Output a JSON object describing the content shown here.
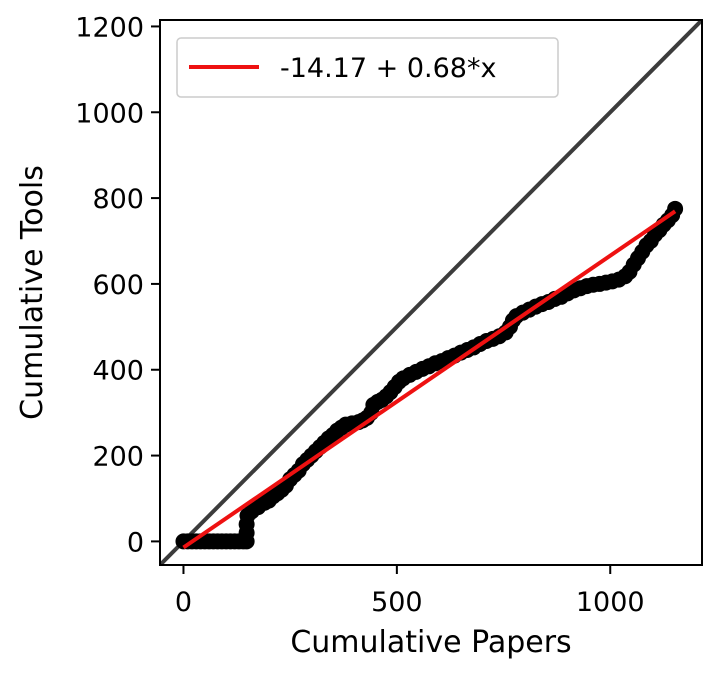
{
  "chart_data": {
    "type": "scatter",
    "xlabel": "Cumulative Papers",
    "ylabel": "Cumulative Tools",
    "xlim": [
      -55,
      1215
    ],
    "ylim": [
      -55,
      1215
    ],
    "xticks": [
      0,
      500,
      1000
    ],
    "yticks": [
      0,
      200,
      400,
      600,
      800,
      1000,
      1200
    ],
    "xtick_labels": [
      "0",
      "500",
      "1000"
    ],
    "ytick_labels": [
      "0",
      "200",
      "400",
      "600",
      "800",
      "1000",
      "1200"
    ],
    "grid": false,
    "legend_position": "top-left",
    "series": [
      {
        "kind": "scatter",
        "color": "#000000",
        "points": [
          [
            0,
            0
          ],
          [
            10,
            0
          ],
          [
            20,
            0
          ],
          [
            30,
            0
          ],
          [
            40,
            0
          ],
          [
            50,
            0
          ],
          [
            60,
            0
          ],
          [
            70,
            0
          ],
          [
            80,
            0
          ],
          [
            90,
            0
          ],
          [
            100,
            0
          ],
          [
            110,
            0
          ],
          [
            120,
            0
          ],
          [
            130,
            0
          ],
          [
            140,
            0
          ],
          [
            148,
            0
          ],
          [
            148,
            20
          ],
          [
            148,
            40
          ],
          [
            150,
            60
          ],
          [
            160,
            70
          ],
          [
            175,
            80
          ],
          [
            190,
            90
          ],
          [
            200,
            95
          ],
          [
            210,
            105
          ],
          [
            220,
            112
          ],
          [
            230,
            120
          ],
          [
            240,
            130
          ],
          [
            250,
            145
          ],
          [
            260,
            155
          ],
          [
            270,
            165
          ],
          [
            280,
            180
          ],
          [
            290,
            190
          ],
          [
            300,
            200
          ],
          [
            310,
            210
          ],
          [
            320,
            220
          ],
          [
            330,
            230
          ],
          [
            340,
            240
          ],
          [
            350,
            248
          ],
          [
            360,
            258
          ],
          [
            370,
            265
          ],
          [
            380,
            272
          ],
          [
            395,
            275
          ],
          [
            410,
            278
          ],
          [
            420,
            282
          ],
          [
            430,
            288
          ],
          [
            440,
            300
          ],
          [
            445,
            318
          ],
          [
            455,
            325
          ],
          [
            465,
            330
          ],
          [
            475,
            338
          ],
          [
            485,
            348
          ],
          [
            495,
            360
          ],
          [
            505,
            372
          ],
          [
            515,
            380
          ],
          [
            530,
            388
          ],
          [
            545,
            395
          ],
          [
            560,
            402
          ],
          [
            575,
            408
          ],
          [
            590,
            415
          ],
          [
            605,
            420
          ],
          [
            620,
            427
          ],
          [
            635,
            433
          ],
          [
            650,
            440
          ],
          [
            665,
            446
          ],
          [
            680,
            452
          ],
          [
            695,
            460
          ],
          [
            710,
            467
          ],
          [
            725,
            472
          ],
          [
            740,
            478
          ],
          [
            755,
            487
          ],
          [
            765,
            500
          ],
          [
            772,
            515
          ],
          [
            780,
            525
          ],
          [
            795,
            533
          ],
          [
            810,
            540
          ],
          [
            825,
            547
          ],
          [
            840,
            553
          ],
          [
            855,
            558
          ],
          [
            870,
            565
          ],
          [
            885,
            570
          ],
          [
            900,
            578
          ],
          [
            915,
            585
          ],
          [
            930,
            590
          ],
          [
            945,
            595
          ],
          [
            960,
            598
          ],
          [
            975,
            600
          ],
          [
            990,
            603
          ],
          [
            1005,
            606
          ],
          [
            1020,
            610
          ],
          [
            1035,
            618
          ],
          [
            1045,
            628
          ],
          [
            1055,
            645
          ],
          [
            1065,
            660
          ],
          [
            1075,
            675
          ],
          [
            1085,
            690
          ],
          [
            1095,
            700
          ],
          [
            1105,
            715
          ],
          [
            1115,
            725
          ],
          [
            1125,
            738
          ],
          [
            1135,
            748
          ],
          [
            1145,
            760
          ],
          [
            1152,
            775
          ]
        ]
      },
      {
        "kind": "fit",
        "name": "-14.17 + 0.68*x",
        "color": "#ee1111",
        "intercept": -14.17,
        "slope": 0.68,
        "x_range": [
          0,
          1152
        ]
      },
      {
        "kind": "reference",
        "color": "#3c3c3c",
        "points": [
          [
            -55,
            -55
          ],
          [
            1215,
            1215
          ]
        ]
      }
    ],
    "legend": [
      "-14.17 + 0.68*x"
    ]
  }
}
